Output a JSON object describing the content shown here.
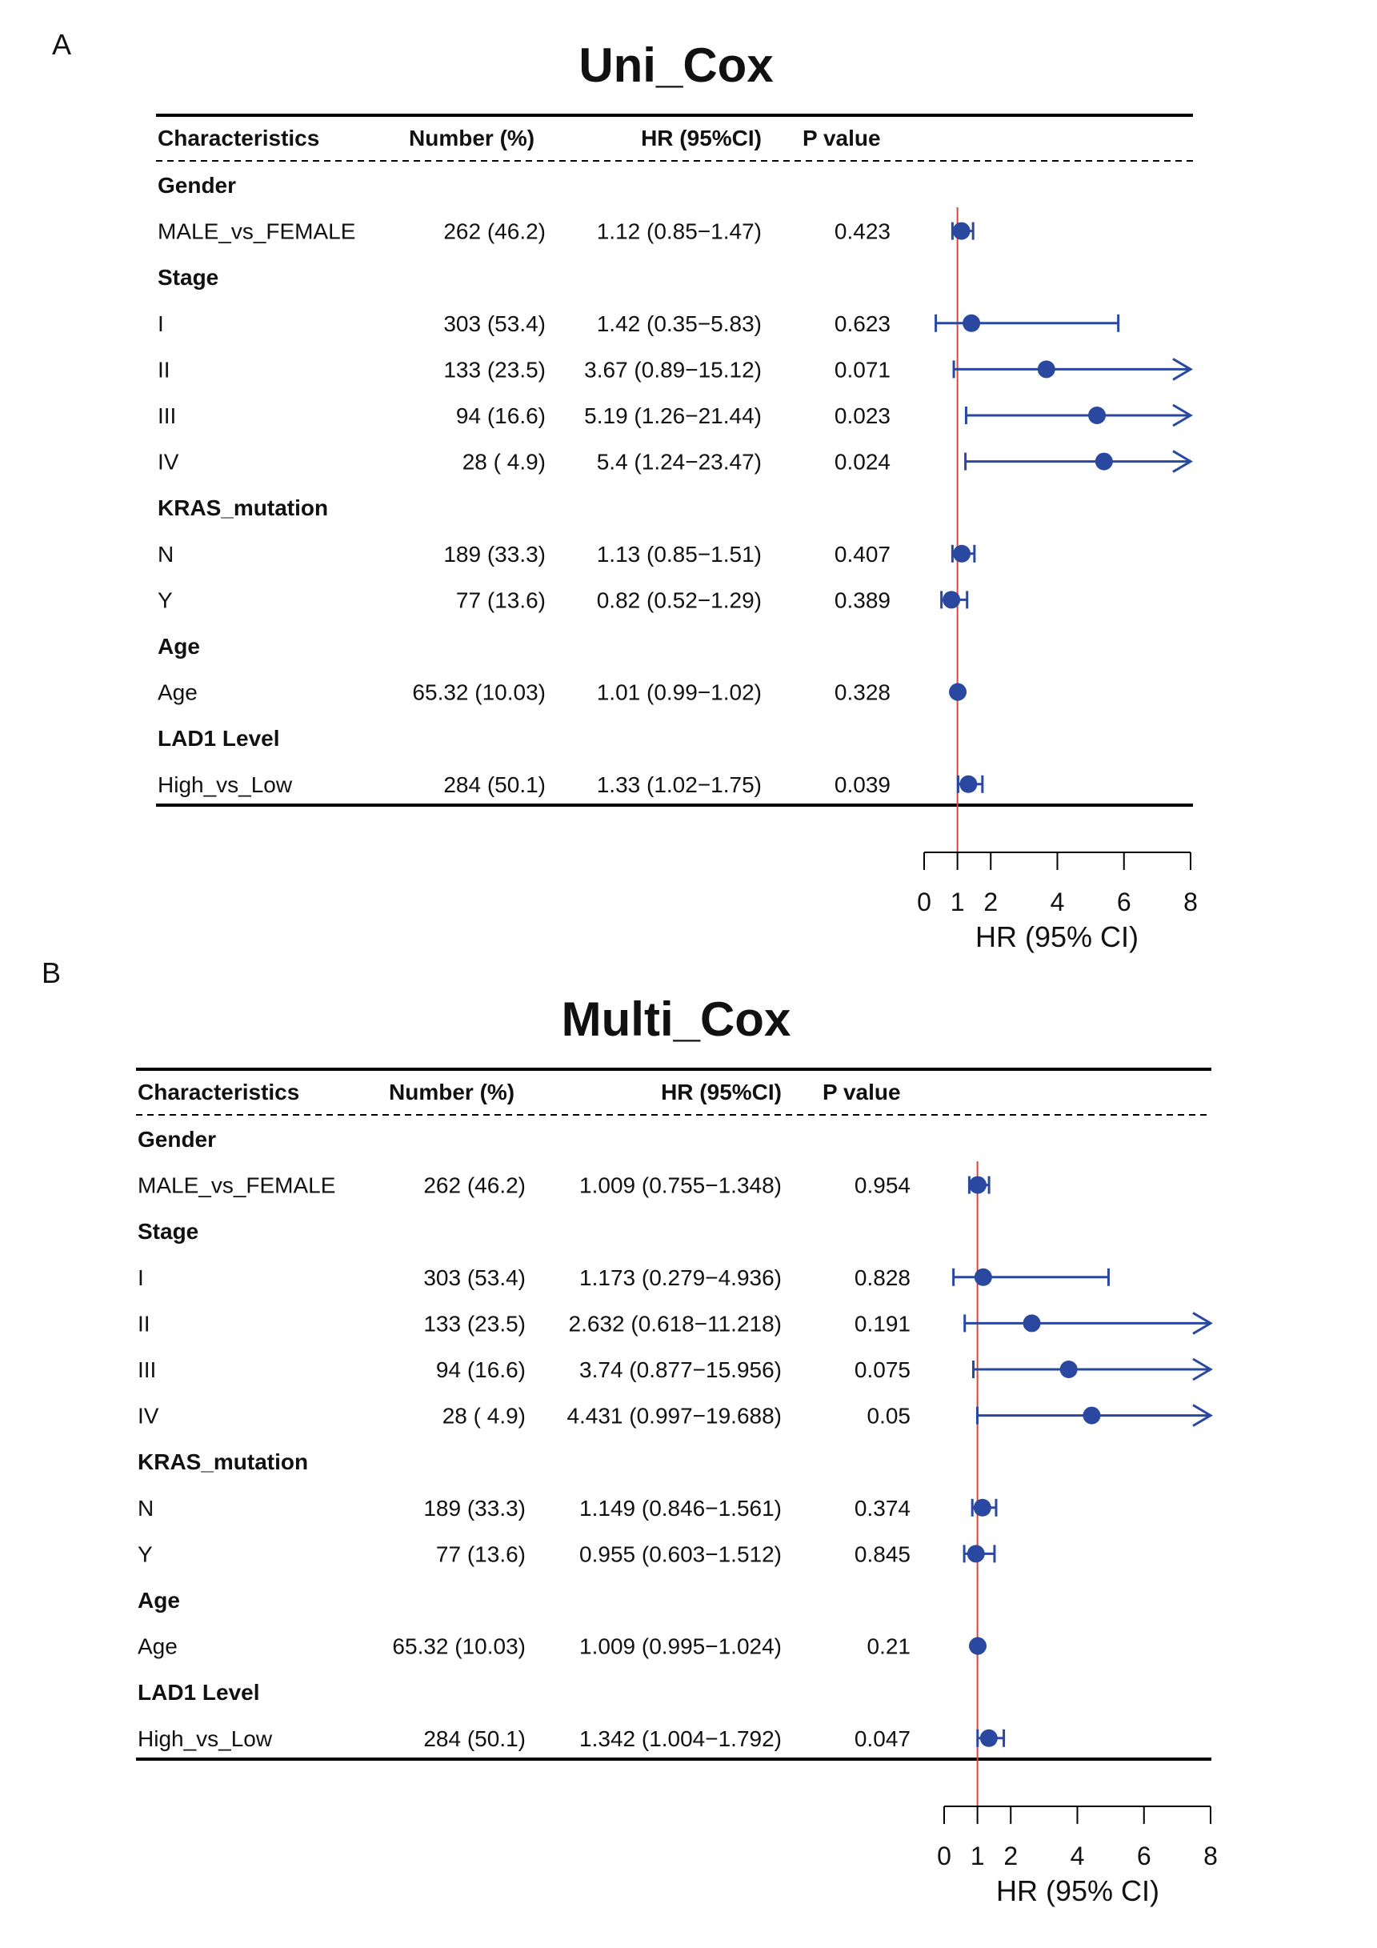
{
  "colors": {
    "point": "#2a48a0",
    "ref_line": "#d9463a",
    "text": "#111111"
  },
  "chart_data": [
    {
      "type": "forest",
      "panel_label": "A",
      "title": "Uni_Cox",
      "headers": [
        "Characteristics",
        "Number (%)",
        "HR (95%CI)",
        "P value"
      ],
      "xlabel": "HR (95% CI)",
      "xlim": [
        0,
        8
      ],
      "xticks": [
        "0",
        "1",
        "2",
        "4",
        "6",
        "8"
      ],
      "xtick_values": [
        0,
        1,
        2,
        4,
        6,
        8
      ],
      "reference": 1,
      "rows": [
        {
          "label": "Gender",
          "group": true
        },
        {
          "label": "MALE_vs_FEMALE",
          "number": "262 (46.2)",
          "hr_text": "1.12 (0.85−1.47)",
          "p": "0.423",
          "hr": 1.12,
          "lo": 0.85,
          "hi": 1.47
        },
        {
          "label": "Stage",
          "group": true
        },
        {
          "label": "I",
          "number": "303 (53.4)",
          "hr_text": "1.42 (0.35−5.83)",
          "p": "0.623",
          "hr": 1.42,
          "lo": 0.35,
          "hi": 5.83
        },
        {
          "label": "II",
          "number": "133 (23.5)",
          "hr_text": "3.67 (0.89−15.12)",
          "p": "0.071",
          "hr": 3.67,
          "lo": 0.89,
          "hi": 15.12
        },
        {
          "label": "III",
          "number": "94 (16.6)",
          "hr_text": "5.19 (1.26−21.44)",
          "p": "0.023",
          "hr": 5.19,
          "lo": 1.26,
          "hi": 21.44
        },
        {
          "label": "IV",
          "number": "28 ( 4.9)",
          "hr_text": "5.4 (1.24−23.47)",
          "p": "0.024",
          "hr": 5.4,
          "lo": 1.24,
          "hi": 23.47
        },
        {
          "label": "KRAS_mutation",
          "group": true
        },
        {
          "label": "N",
          "number": "189 (33.3)",
          "hr_text": "1.13 (0.85−1.51)",
          "p": "0.407",
          "hr": 1.13,
          "lo": 0.85,
          "hi": 1.51
        },
        {
          "label": "Y",
          "number": "77 (13.6)",
          "hr_text": "0.82 (0.52−1.29)",
          "p": "0.389",
          "hr": 0.82,
          "lo": 0.52,
          "hi": 1.29
        },
        {
          "label": "Age",
          "group": true
        },
        {
          "label": "Age",
          "number": "65.32 (10.03)",
          "hr_text": "1.01 (0.99−1.02)",
          "p": "0.328",
          "hr": 1.01,
          "lo": 0.99,
          "hi": 1.02
        },
        {
          "label": "LAD1 Level",
          "group": true
        },
        {
          "label": "High_vs_Low",
          "number": "284 (50.1)",
          "hr_text": "1.33 (1.02−1.75)",
          "p": "0.039",
          "hr": 1.33,
          "lo": 1.02,
          "hi": 1.75
        }
      ]
    },
    {
      "type": "forest",
      "panel_label": "B",
      "title": "Multi_Cox",
      "headers": [
        "Characteristics",
        "Number (%)",
        "HR (95%CI)",
        "P value"
      ],
      "xlabel": "HR (95% CI)",
      "xlim": [
        0,
        8
      ],
      "xticks": [
        "0",
        "1",
        "2",
        "4",
        "6",
        "8"
      ],
      "xtick_values": [
        0,
        1,
        2,
        4,
        6,
        8
      ],
      "reference": 1,
      "rows": [
        {
          "label": "Gender",
          "group": true
        },
        {
          "label": "MALE_vs_FEMALE",
          "number": "262 (46.2)",
          "hr_text": "1.009 (0.755−1.348)",
          "p": "0.954",
          "hr": 1.009,
          "lo": 0.755,
          "hi": 1.348
        },
        {
          "label": "Stage",
          "group": true
        },
        {
          "label": "I",
          "number": "303 (53.4)",
          "hr_text": "1.173 (0.279−4.936)",
          "p": "0.828",
          "hr": 1.173,
          "lo": 0.279,
          "hi": 4.936
        },
        {
          "label": "II",
          "number": "133 (23.5)",
          "hr_text": "2.632 (0.618−11.218)",
          "p": "0.191",
          "hr": 2.632,
          "lo": 0.618,
          "hi": 11.218
        },
        {
          "label": "III",
          "number": "94 (16.6)",
          "hr_text": "3.74 (0.877−15.956)",
          "p": "0.075",
          "hr": 3.74,
          "lo": 0.877,
          "hi": 15.956
        },
        {
          "label": "IV",
          "number": "28 ( 4.9)",
          "hr_text": "4.431 (0.997−19.688)",
          "p": "0.05",
          "hr": 4.431,
          "lo": 0.997,
          "hi": 19.688
        },
        {
          "label": "KRAS_mutation",
          "group": true
        },
        {
          "label": "N",
          "number": "189 (33.3)",
          "hr_text": "1.149 (0.846−1.561)",
          "p": "0.374",
          "hr": 1.149,
          "lo": 0.846,
          "hi": 1.561
        },
        {
          "label": "Y",
          "number": "77 (13.6)",
          "hr_text": "0.955 (0.603−1.512)",
          "p": "0.845",
          "hr": 0.955,
          "lo": 0.603,
          "hi": 1.512
        },
        {
          "label": "Age",
          "group": true
        },
        {
          "label": "Age",
          "number": "65.32 (10.03)",
          "hr_text": "1.009 (0.995−1.024)",
          "p": "0.21",
          "hr": 1.009,
          "lo": 0.995,
          "hi": 1.024
        },
        {
          "label": "LAD1 Level",
          "group": true
        },
        {
          "label": "High_vs_Low",
          "number": "284 (50.1)",
          "hr_text": "1.342 (1.004−1.792)",
          "p": "0.047",
          "hr": 1.342,
          "lo": 1.004,
          "hi": 1.792
        }
      ]
    }
  ]
}
